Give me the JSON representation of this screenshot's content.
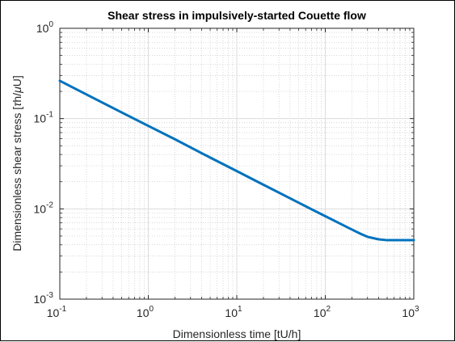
{
  "chart_data": {
    "type": "line",
    "title": "Shear stress in impulsively-started Couette flow",
    "xlabel": "Dimensionless time [tU/h]",
    "ylabel_prefix": "Dimensionless shear stress [",
    "ylabel_tau": "τ",
    "ylabel_mid": "h/",
    "ylabel_mu": "μ",
    "ylabel_suffix": "U]",
    "xscale": "log",
    "yscale": "log",
    "xlim": [
      0.1,
      1000
    ],
    "ylim": [
      0.001,
      1
    ],
    "grid": true,
    "minor_grid": true,
    "x_ticks": [
      {
        "base": "10",
        "exp": "-1"
      },
      {
        "base": "10",
        "exp": "0"
      },
      {
        "base": "10",
        "exp": "1"
      },
      {
        "base": "10",
        "exp": "2"
      },
      {
        "base": "10",
        "exp": "3"
      }
    ],
    "y_ticks": [
      {
        "base": "10",
        "exp": "-3"
      },
      {
        "base": "10",
        "exp": "-2"
      },
      {
        "base": "10",
        "exp": "-1"
      },
      {
        "base": "10",
        "exp": "0"
      }
    ],
    "series": [
      {
        "color": "#0072BD",
        "x": [
          0.1,
          0.2,
          0.5,
          1,
          2,
          5,
          10,
          20,
          50,
          100,
          150,
          200,
          250,
          300,
          400,
          500,
          700,
          1000
        ],
        "y": [
          0.262,
          0.185,
          0.117,
          0.083,
          0.059,
          0.037,
          0.0262,
          0.0185,
          0.0117,
          0.0083,
          0.0068,
          0.0059,
          0.0053,
          0.0049,
          0.0046,
          0.0045,
          0.0045,
          0.0045
        ]
      }
    ]
  }
}
